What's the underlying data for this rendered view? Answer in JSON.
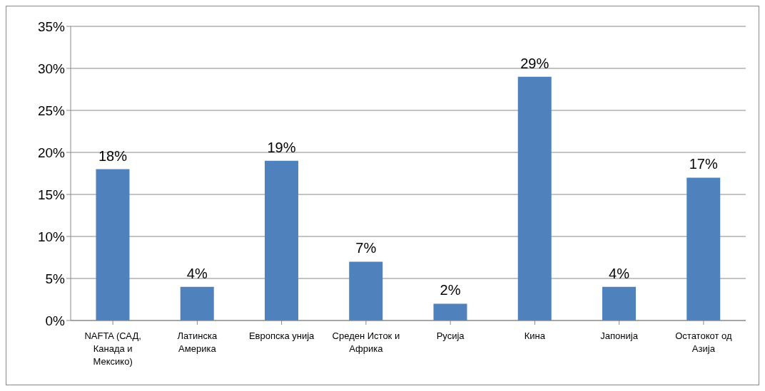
{
  "chart_data": {
    "type": "bar",
    "categories": [
      "NAFTA (САД, Канада и Мексико)",
      "Латинска Америка",
      "Европска унија",
      "Среден Исток и Африка",
      "Русија",
      "Кина",
      "Јапонија",
      "Остатокот од Азија"
    ],
    "values": [
      18,
      4,
      19,
      7,
      2,
      29,
      4,
      17
    ],
    "value_labels": [
      "18%",
      "4%",
      "19%",
      "7%",
      "2%",
      "29%",
      "4%",
      "17%"
    ],
    "color": "#4f81bd",
    "ylim": [
      0,
      35
    ],
    "yticks": [
      {
        "value": 0,
        "label": "0%"
      },
      {
        "value": 5,
        "label": "5%"
      },
      {
        "value": 10,
        "label": "10%"
      },
      {
        "value": 15,
        "label": "15%"
      },
      {
        "value": 20,
        "label": "20%"
      },
      {
        "value": 25,
        "label": "25%"
      },
      {
        "value": 30,
        "label": "30%"
      },
      {
        "value": 35,
        "label": "35%"
      }
    ],
    "grid": "y"
  }
}
